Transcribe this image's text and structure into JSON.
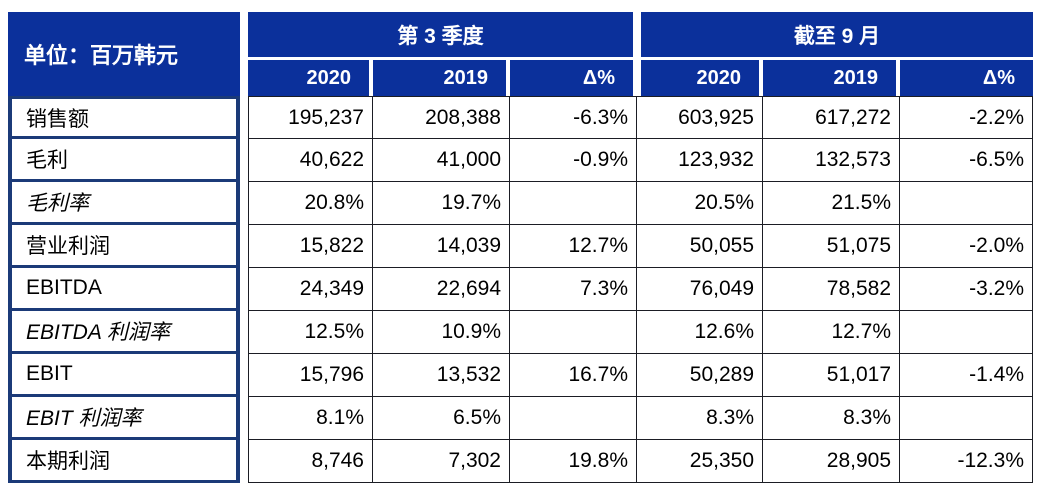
{
  "unit_label": "单位：百万韩元",
  "groups": [
    {
      "title": "第 3 季度",
      "columns": [
        "2020",
        "2019",
        "Δ%"
      ]
    },
    {
      "title": "截至 9 月",
      "columns": [
        "2020",
        "2019",
        "Δ%"
      ]
    }
  ],
  "rows": [
    {
      "label": "销售额",
      "italic": false,
      "values": [
        "195,237",
        "208,388",
        "-6.3%",
        "603,925",
        "617,272",
        "-2.2%"
      ]
    },
    {
      "label": "毛利",
      "italic": false,
      "values": [
        "40,622",
        "41,000",
        "-0.9%",
        "123,932",
        "132,573",
        "-6.5%"
      ]
    },
    {
      "label": "毛利率",
      "italic": true,
      "values": [
        "20.8%",
        "19.7%",
        "",
        "20.5%",
        "21.5%",
        ""
      ]
    },
    {
      "label": "营业利润",
      "italic": false,
      "values": [
        "15,822",
        "14,039",
        "12.7%",
        "50,055",
        "51,075",
        "-2.0%"
      ]
    },
    {
      "label": "EBITDA",
      "italic": false,
      "values": [
        "24,349",
        "22,694",
        "7.3%",
        "76,049",
        "78,582",
        "-3.2%"
      ]
    },
    {
      "label": "EBITDA 利润率",
      "italic": true,
      "values": [
        "12.5%",
        "10.9%",
        "",
        "12.6%",
        "12.7%",
        ""
      ]
    },
    {
      "label": "EBIT",
      "italic": false,
      "values": [
        "15,796",
        "13,532",
        "16.7%",
        "50,289",
        "51,017",
        "-1.4%"
      ]
    },
    {
      "label": "EBIT 利润率",
      "italic": true,
      "values": [
        "8.1%",
        "6.5%",
        "",
        "8.3%",
        "8.3%",
        ""
      ]
    },
    {
      "label": "本期利润",
      "italic": false,
      "values": [
        "8,746",
        "7,302",
        "19.8%",
        "25,350",
        "28,905",
        "-12.3%"
      ]
    }
  ],
  "colors": {
    "header_blue": "#0b309b",
    "label_border_navy": "#1b3a78",
    "grid_line": "#1b1d24",
    "text": "#000000"
  }
}
